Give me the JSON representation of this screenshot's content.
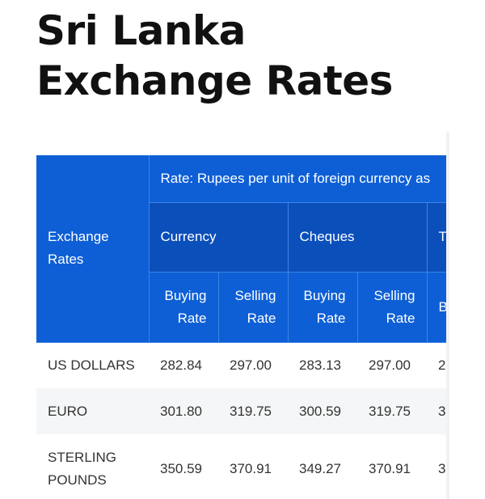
{
  "page": {
    "title": "Sri Lanka Exchange Rates"
  },
  "table": {
    "row_header_label": "Exchange Rates",
    "rate_caption": "Rate: Rupees per unit of foreign currency as",
    "groups": [
      {
        "label": "Currency"
      },
      {
        "label": "Cheques"
      },
      {
        "label": "T T"
      }
    ],
    "sub_headers": {
      "buying": "Buying Rate",
      "selling": "Selling Rate",
      "partial": "B"
    },
    "rows": [
      {
        "name": "US DOLLARS",
        "currency_buying": "282.84",
        "currency_selling": "297.00",
        "cheques_buying": "283.13",
        "cheques_selling": "297.00",
        "tt_partial": "2"
      },
      {
        "name": "EURO",
        "currency_buying": "301.80",
        "currency_selling": "319.75",
        "cheques_buying": "300.59",
        "cheques_selling": "319.75",
        "tt_partial": "3"
      },
      {
        "name": "STERLING POUNDS",
        "currency_buying": "350.59",
        "currency_selling": "370.91",
        "cheques_buying": "349.27",
        "cheques_selling": "370.91",
        "tt_partial": "3"
      }
    ]
  },
  "colors": {
    "header_primary": "#0e5fd6",
    "header_group": "#0b4fbb",
    "row_alt": "#f5f6f7",
    "title_text": "#111111"
  }
}
